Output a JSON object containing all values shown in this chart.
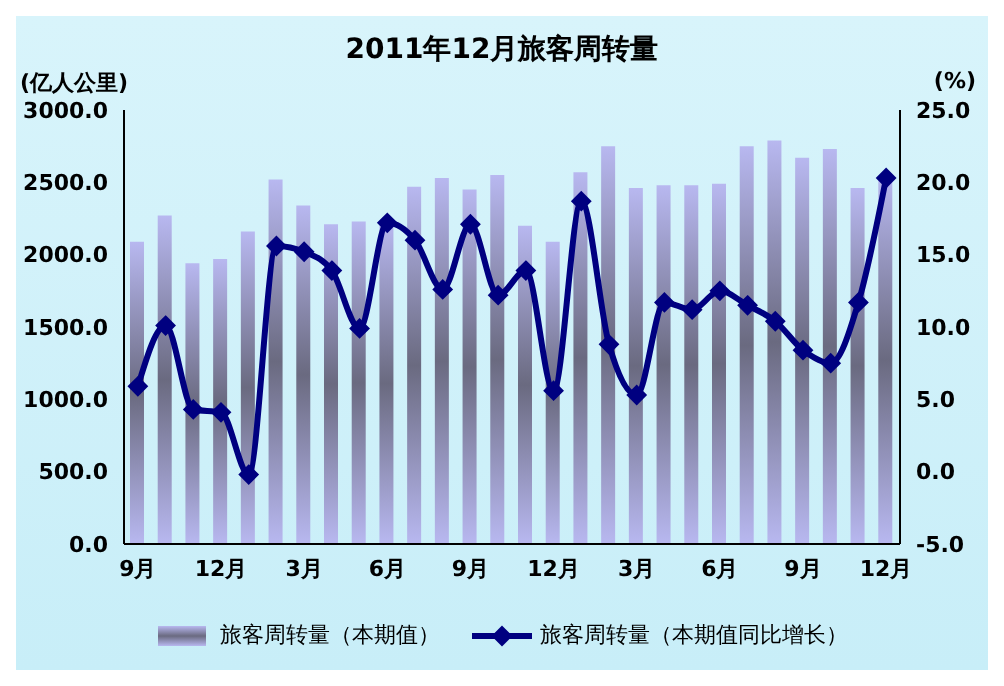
{
  "chart_data": {
    "type": "bar",
    "title": "2011年12月旅客周转量",
    "ylabel": "(亿人公里)",
    "y2label": "(%)",
    "categories": [
      "9月",
      null,
      null,
      "12月",
      null,
      null,
      "3月",
      null,
      null,
      "6月",
      null,
      null,
      "9月",
      null,
      null,
      "12月",
      null,
      null,
      "3月",
      null,
      null,
      "6月",
      null,
      null,
      "9月",
      null,
      null,
      "12月"
    ],
    "series": [
      {
        "name": "旅客周转量（本期值）",
        "color": "#b8b8f0",
        "values": [
          2090,
          2270,
          1940,
          1970,
          2160,
          2520,
          2340,
          2210,
          2230,
          2220,
          2470,
          2530,
          2450,
          2550,
          2200,
          2090,
          2570,
          2750,
          2460,
          2480,
          2480,
          2490,
          2750,
          2790,
          2670,
          2730,
          2460,
          2540
        ]
      },
      {
        "name": "旅客周转量（本期值同比增长）",
        "type": "line",
        "axis": "y2",
        "color": "#000080",
        "values": [
          5.9,
          10.1,
          4.3,
          4.1,
          -0.2,
          15.6,
          15.2,
          13.9,
          9.9,
          17.2,
          16.0,
          12.6,
          17.1,
          12.2,
          13.9,
          5.6,
          18.7,
          8.8,
          5.3,
          11.7,
          11.2,
          12.5,
          11.5,
          10.4,
          8.4,
          7.5,
          11.7,
          20.3
        ]
      }
    ],
    "ylim": [
      0,
      3000
    ],
    "yticks": [
      {
        "value": 0,
        "label": "0.0"
      },
      {
        "value": 500,
        "label": "500.0"
      },
      {
        "value": 1000,
        "label": "1000.0"
      },
      {
        "value": 1500,
        "label": "1500.0"
      },
      {
        "value": 2000,
        "label": "2000.0"
      },
      {
        "value": 2500,
        "label": "2500.0"
      },
      {
        "value": 3000,
        "label": "3000.0"
      }
    ],
    "y2lim": [
      -5,
      25
    ],
    "y2ticks": [
      {
        "value": -5,
        "label": "-5.0"
      },
      {
        "value": 0,
        "label": "0.0"
      },
      {
        "value": 5,
        "label": "5.0"
      },
      {
        "value": 10,
        "label": "10.0"
      },
      {
        "value": 15,
        "label": "15.0"
      },
      {
        "value": 20,
        "label": "20.0"
      },
      {
        "value": 25,
        "label": "25.0"
      }
    ],
    "grid": false,
    "legend": "bottom",
    "marker": "diamond",
    "line_style": "solid"
  }
}
